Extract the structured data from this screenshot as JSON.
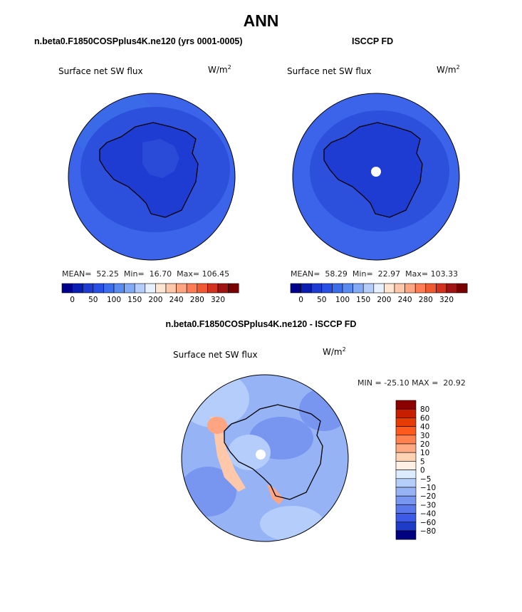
{
  "title": "ANN",
  "chart_data": [
    {
      "type": "heatmap",
      "projection": "south-polar-stereographic",
      "title": "n.beta0.F1850COSPplus4K.ne120 (yrs 0001-0005)",
      "field_label": "Surface net SW flux",
      "units_base": "W/m",
      "units_exp": "2",
      "stats": {
        "mean_label": "MEAN=",
        "mean": "52.25",
        "min_label": "Min=",
        "min": "16.70",
        "max_label": "Max=",
        "max": "106.45"
      },
      "colorbar_levels": [
        "0",
        "50",
        "100",
        "150",
        "200",
        "240",
        "280",
        "320"
      ]
    },
    {
      "type": "heatmap",
      "projection": "south-polar-stereographic",
      "title": "ISCCP FD",
      "field_label": "Surface net SW flux",
      "units_base": "W/m",
      "units_exp": "2",
      "stats": {
        "mean_label": "MEAN=",
        "mean": "58.29",
        "min_label": "Min=",
        "min": "22.97",
        "max_label": "Max=",
        "max": "103.33"
      },
      "colorbar_levels": [
        "0",
        "50",
        "100",
        "150",
        "200",
        "240",
        "280",
        "320"
      ]
    },
    {
      "type": "heatmap",
      "projection": "south-polar-stereographic",
      "title": "n.beta0.F1850COSPplus4K.ne120 - ISCCP FD",
      "field_label": "Surface net SW flux",
      "units_base": "W/m",
      "units_exp": "2",
      "stats": {
        "min_label": "MIN =",
        "min": "-25.10",
        "max_label": "MAX =",
        "max": "20.92"
      },
      "colorbar_levels": [
        "80",
        "60",
        "40",
        "30",
        "20",
        "10",
        "5",
        "0",
        "-5",
        "-10",
        "-20",
        "-30",
        "-40",
        "-60",
        "-80"
      ]
    }
  ],
  "colors": {
    "abs_scale": [
      "#00008c",
      "#0a1eb4",
      "#1e3cd2",
      "#2850e6",
      "#3c6eeb",
      "#5a8cf0",
      "#82aaf5",
      "#b4cdfa",
      "#e6f0ff",
      "#ffe6d2",
      "#ffc8aa",
      "#ffa582",
      "#ff7d55",
      "#f05a32",
      "#d2321e",
      "#a01414",
      "#780000"
    ],
    "diff_scale": [
      "#8c0000",
      "#c81e00",
      "#e63c00",
      "#ff5a1e",
      "#ff8250",
      "#ffaa82",
      "#ffd2b4",
      "#fff0e6",
      "#dcebff",
      "#b4cdfa",
      "#96b4f5",
      "#7896f0",
      "#5a78eb",
      "#3c5ae6",
      "#1e3cc8",
      "#000080"
    ]
  }
}
